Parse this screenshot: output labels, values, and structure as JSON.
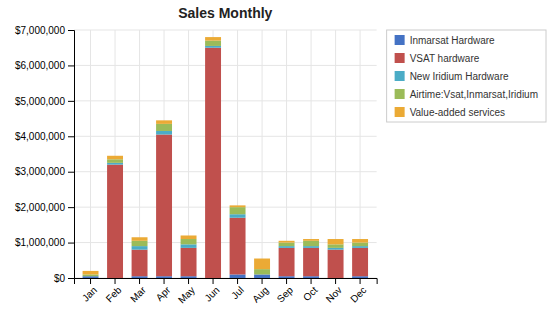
{
  "chart_data": {
    "type": "bar",
    "stacked": true,
    "title": "Sales Monthly",
    "categories": [
      "Jan",
      "Feb",
      "Mar",
      "Apr",
      "May",
      "Jun",
      "Jul",
      "Aug",
      "Sep",
      "Oct",
      "Nov",
      "Dec"
    ],
    "series": [
      {
        "name": "Inmarsat Hardware",
        "color": "#4472C4",
        "values": [
          50000,
          0,
          50000,
          50000,
          50000,
          0,
          100000,
          100000,
          50000,
          50000,
          0,
          50000
        ]
      },
      {
        "name": "VSAT hardware",
        "color": "#C0504D",
        "values": [
          0,
          3200000,
          750000,
          4000000,
          800000,
          6500000,
          1600000,
          0,
          800000,
          800000,
          800000,
          800000
        ]
      },
      {
        "name": "New Iridium Hardware",
        "color": "#4BACC6",
        "values": [
          0,
          50000,
          100000,
          100000,
          100000,
          50000,
          100000,
          0,
          50000,
          50000,
          50000,
          50000
        ]
      },
      {
        "name": "Airtime:Vsat,Inmarsat,Iridium",
        "color": "#9BBB59",
        "values": [
          50000,
          100000,
          150000,
          200000,
          150000,
          150000,
          200000,
          150000,
          100000,
          150000,
          100000,
          100000
        ]
      },
      {
        "name": "Value-added services",
        "color": "#EBAA35",
        "values": [
          100000,
          100000,
          100000,
          100000,
          100000,
          100000,
          50000,
          300000,
          50000,
          50000,
          150000,
          100000
        ]
      }
    ],
    "ylim": [
      0,
      7000000
    ],
    "yticks": [
      {
        "value": 0,
        "label": "$0"
      },
      {
        "value": 1000000,
        "label": "$1,000,000"
      },
      {
        "value": 2000000,
        "label": "$2,000,000"
      },
      {
        "value": 3000000,
        "label": "$3,000,000"
      },
      {
        "value": 4000000,
        "label": "$4,000,000"
      },
      {
        "value": 5000000,
        "label": "$5,000,000"
      },
      {
        "value": 6000000,
        "label": "$6,000,000"
      },
      {
        "value": 7000000,
        "label": "$7,000,000"
      }
    ],
    "grid": true,
    "legend": "right"
  }
}
